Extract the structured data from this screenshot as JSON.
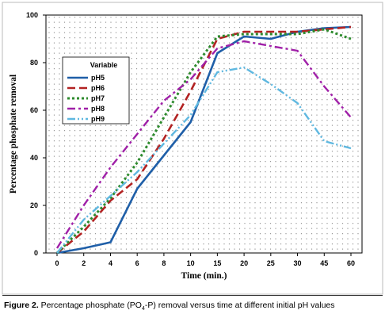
{
  "chart_data": {
    "type": "line",
    "title": "",
    "xlabel": "Time (min.)",
    "ylabel": "Percentage phosphate removal",
    "categories": [
      "0",
      "2",
      "4",
      "6",
      "8",
      "10",
      "15",
      "20",
      "25",
      "30",
      "45",
      "60"
    ],
    "ylim": [
      0,
      100
    ],
    "yticks": [
      0,
      20,
      40,
      60,
      80,
      100
    ],
    "grid": "dotted",
    "legend": {
      "title": "Variable",
      "placement": "top-left"
    },
    "series": [
      {
        "name": "pH5",
        "color": "#1f5fa8",
        "dash": "solid",
        "values": [
          0,
          2,
          4.5,
          27,
          41,
          55,
          84,
          91,
          90,
          93,
          94.5,
          95
        ]
      },
      {
        "name": "pH6",
        "color": "#b22222",
        "dash": "long-dash",
        "values": [
          0,
          9,
          22,
          31,
          48,
          68,
          90,
          93,
          93,
          93,
          94,
          95
        ]
      },
      {
        "name": "pH7",
        "color": "#2e8b2e",
        "dash": "dotted",
        "values": [
          0,
          11,
          23,
          38,
          57,
          76,
          91,
          92,
          92,
          92,
          94,
          90
        ]
      },
      {
        "name": "pH8",
        "color": "#a020a8",
        "dash": "dash-dot",
        "values": [
          2,
          20,
          36,
          50,
          64,
          73,
          86,
          89,
          87,
          85,
          70,
          57
        ]
      },
      {
        "name": "pH9",
        "color": "#5fb8e0",
        "dash": "dash-dot-dot",
        "values": [
          0,
          14,
          24,
          34,
          46,
          58,
          76,
          78,
          71,
          63,
          47,
          44
        ]
      }
    ]
  },
  "caption": {
    "label": "Figure 2.",
    "text_before": " Percentage phosphate (PO",
    "subscript": "4",
    "text_after": "-P) removal versus time at different initial pH values"
  }
}
